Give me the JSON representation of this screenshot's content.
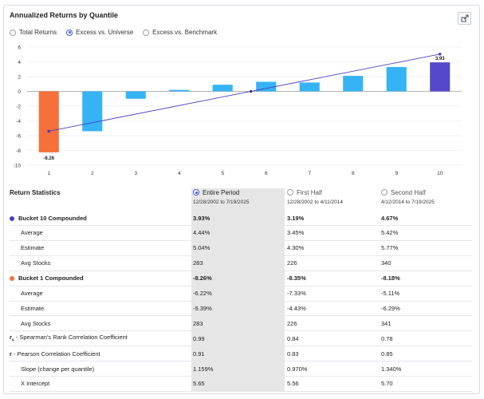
{
  "panel": {
    "title": "Annualized Returns by Quantile",
    "export_icon": "export-icon"
  },
  "view_options": [
    {
      "label": "Total Returns",
      "selected": false
    },
    {
      "label": "Excess vs. Universe",
      "selected": true
    },
    {
      "label": "Excess vs. Benchmark",
      "selected": false
    }
  ],
  "colors": {
    "bar_default": "#36b3f5",
    "bar_low": "#f5703a",
    "bar_high": "#5447c9",
    "trend_line": "#4b3fc4"
  },
  "chart_data": {
    "type": "bar",
    "categories": [
      "1",
      "2",
      "3",
      "4",
      "5",
      "6",
      "7",
      "8",
      "9",
      "10"
    ],
    "values": [
      -8.26,
      -5.4,
      -1.0,
      0.2,
      0.9,
      1.3,
      1.2,
      2.1,
      3.3,
      3.93
    ],
    "data_labels": {
      "first": "-8.26",
      "last": "3.93"
    },
    "trend_line": {
      "start": [
        1,
        -5.4
      ],
      "end": [
        10,
        5.05
      ],
      "mid_marker": [
        6,
        0
      ]
    },
    "ylim": [
      -10,
      6
    ],
    "yticks": [
      "6",
      "4",
      "2",
      "0",
      "-2",
      "-4",
      "-6",
      "-8",
      "-10"
    ],
    "ytick_values": [
      6,
      4,
      2,
      0,
      -2,
      -4,
      -6,
      -8,
      -10
    ],
    "grid": true,
    "title": "",
    "xlabel": "",
    "ylabel": ""
  },
  "stats": {
    "heading": "Return Statistics",
    "periods": [
      {
        "label": "Entire Period",
        "range": "12/28/2002 to 7/19/2025",
        "selected": true
      },
      {
        "label": "First Half",
        "range": "12/28/2002 to 4/11/2014",
        "selected": false
      },
      {
        "label": "Second Half",
        "range": "4/12/2014 to 7/19/2025",
        "selected": false
      }
    ],
    "rows": [
      {
        "label": "Bucket 10 Compounded",
        "values": [
          "3.93%",
          "3.19%",
          "4.67%"
        ],
        "bold": true,
        "dot": "#4b3fc4"
      },
      {
        "label": "Average",
        "values": [
          "4.44%",
          "3.45%",
          "5.42%"
        ]
      },
      {
        "label": "Estimate",
        "values": [
          "5.04%",
          "4.30%",
          "5.77%"
        ]
      },
      {
        "label": "Avg Stocks",
        "values": [
          "283",
          "226",
          "340"
        ]
      },
      {
        "label": "Bucket 1 Compounded",
        "values": [
          "-8.26%",
          "-8.35%",
          "-8.18%"
        ],
        "bold": true,
        "dot": "#f5703a"
      },
      {
        "label": "Average",
        "values": [
          "-6.22%",
          "-7.33%",
          "-5.11%"
        ]
      },
      {
        "label": "Estimate",
        "values": [
          "-5.39%",
          "-4.43%",
          "-6.29%"
        ]
      },
      {
        "label": "Avg Stocks",
        "values": [
          "283",
          "226",
          "341"
        ]
      },
      {
        "label": "r",
        "label_sub": "s",
        "label_rest": " - Spearman's Rank Correlation Coefficient",
        "values": [
          "0.99",
          "0.84",
          "0.78"
        ],
        "greek": true
      },
      {
        "label": "r",
        "label_rest": " - Pearson Correlation Coefficient",
        "values": [
          "0.91",
          "0.83",
          "0.85"
        ],
        "greek": true
      },
      {
        "label": "Slope (change per quantile)",
        "values": [
          "1.159%",
          "0.970%",
          "1.340%"
        ]
      },
      {
        "label": "X Intercept",
        "values": [
          "5.65",
          "5.56",
          "5.70"
        ]
      }
    ]
  }
}
